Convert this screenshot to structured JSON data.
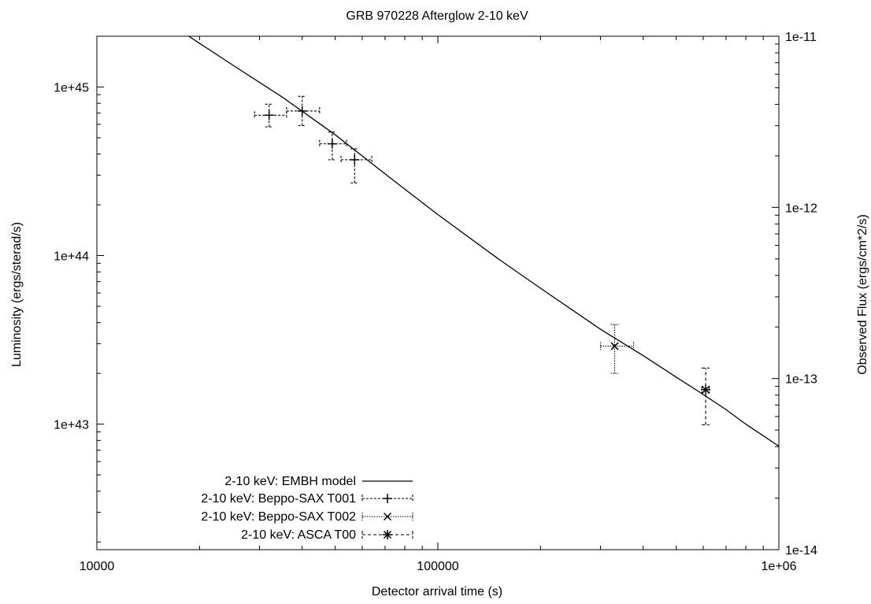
{
  "chart_data": {
    "type": "scatter",
    "title": "GRB 970228 Afterglow 2-10 keV",
    "xlabel": "Detector arrival time (s)",
    "ylabel": "Luminosity (ergs/sterad/s)",
    "y2label": "Observed Flux (ergs/cm*2/s)",
    "xscale": "log",
    "yscale": "log",
    "y2scale": "log",
    "xlim": [
      10000,
      1000000
    ],
    "ylim": [
      1.8e+42,
      2e+45
    ],
    "y2lim": [
      1e-14,
      1e-11
    ],
    "x_ticks": [
      "10000",
      "100000",
      "1e+06"
    ],
    "y_ticks": [
      "1e+43",
      "1e+44",
      "1e+45"
    ],
    "y2_ticks": [
      "1e-14",
      "1e-13",
      "1e-12",
      "1e-11"
    ],
    "legend_position": "bottom-left",
    "series": [
      {
        "name": "2-10 keV: EMBH model",
        "kind": "line",
        "style": "solid",
        "points": [
          [
            18600,
            2e+45
          ],
          [
            25000,
            1.35e+45
          ],
          [
            35000,
            8.7e+44
          ],
          [
            50000,
            5.2e+44
          ],
          [
            70000,
            3.05e+44
          ],
          [
            100000,
            1.75e+44
          ],
          [
            150000,
            9.6e+43
          ],
          [
            200000,
            6.4e+43
          ],
          [
            300000,
            3.65e+43
          ],
          [
            400000,
            2.55e+43
          ],
          [
            500000,
            1.9e+43
          ],
          [
            600000,
            1.5e+43
          ],
          [
            700000,
            1.22e+43
          ],
          [
            800000,
            1e+43
          ],
          [
            1000000,
            7.4e+42
          ]
        ]
      },
      {
        "name": "2-10 keV: Beppo-SAX T001",
        "kind": "errorbar",
        "marker": "plus",
        "style": "dashed",
        "points": [
          {
            "x": 32000,
            "y": 6.8e+44,
            "xerr": [
              29000,
              36000
            ],
            "yerr": [
              5.8e+44,
              7.9e+44
            ]
          },
          {
            "x": 40000,
            "y": 7.2e+44,
            "xerr": [
              36000,
              45000
            ],
            "yerr": [
              5.9e+44,
              8.8e+44
            ]
          },
          {
            "x": 49000,
            "y": 4.6e+44,
            "xerr": [
              45000,
              54000
            ],
            "yerr": [
              3.7e+44,
              5.4e+44
            ]
          },
          {
            "x": 57000,
            "y": 3.7e+44,
            "xerr": [
              52000,
              64000
            ],
            "yerr": [
              2.7e+44,
              4.3e+44
            ]
          }
        ]
      },
      {
        "name": "2-10 keV: Beppo-SAX T002",
        "kind": "errorbar",
        "marker": "cross",
        "style": "dotted",
        "points": [
          {
            "x": 330000,
            "y": 2.9e+43,
            "xerr": [
              300000,
              375000
            ],
            "yerr": [
              2e+43,
              3.9e+43
            ]
          }
        ]
      },
      {
        "name": "2-10 keV: ASCA T00",
        "kind": "errorbar",
        "marker": "star",
        "style": "dashed",
        "points": [
          {
            "x": 610000,
            "y": 1.6e+43,
            "xerr": [
              595000,
              625000
            ],
            "yerr": [
              9.9e+42,
              2.15e+43
            ]
          }
        ]
      }
    ]
  }
}
